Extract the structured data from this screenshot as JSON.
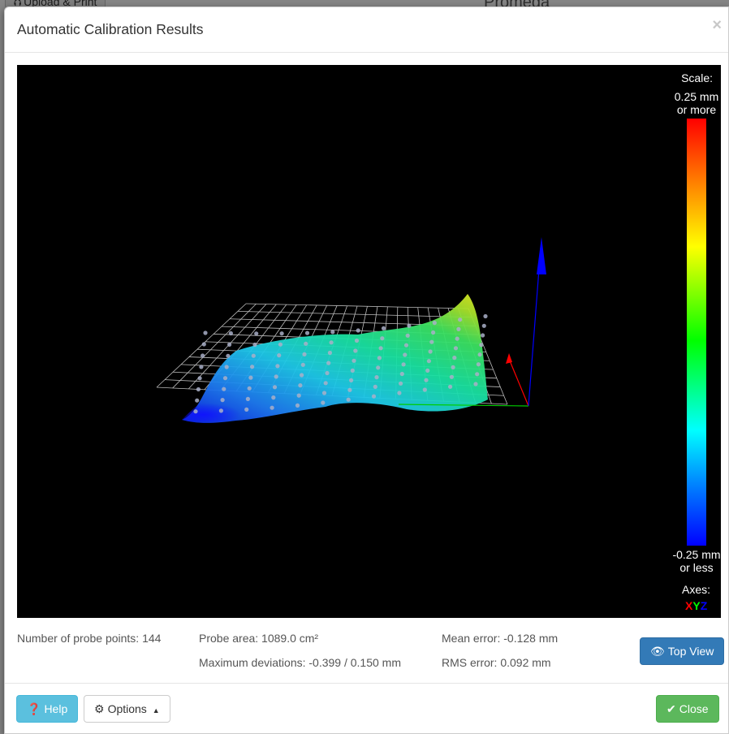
{
  "background": {
    "tab_label": "Upload & Print",
    "brand": "Promega"
  },
  "modal": {
    "title": "Automatic Calibration Results",
    "close_symbol": "×"
  },
  "viewport": {
    "scale_title": "Scale:",
    "scale_max_line1": "0.25 mm",
    "scale_max_line2": "or more",
    "scale_min_line1": "-0.25 mm",
    "scale_min_line2": "or less",
    "axes_title": "Axes:",
    "axes": [
      {
        "label": "X",
        "color": "#ff0000"
      },
      {
        "label": "Y",
        "color": "#00ff00"
      },
      {
        "label": "Z",
        "color": "#0000ff"
      }
    ],
    "colormap": {
      "max_color": "#ff0000",
      "mid_color": "#00ff00",
      "min_color": "#0000ff"
    }
  },
  "stats": {
    "probe_points": "Number of probe points: 144",
    "probe_area": "Probe area: 1089.0 cm²",
    "max_deviations": "Maximum deviations: -0.399 / 0.150 mm",
    "mean_error": "Mean error: -0.128 mm",
    "rms_error": "RMS error: 0.092 mm"
  },
  "buttons": {
    "top_view": "Top View",
    "help": "Help",
    "options": "Options",
    "close": "Close"
  },
  "icons": {
    "top_view": "eye-icon",
    "help": "question-circle-icon",
    "options": "gear-icon",
    "close": "check-icon"
  }
}
